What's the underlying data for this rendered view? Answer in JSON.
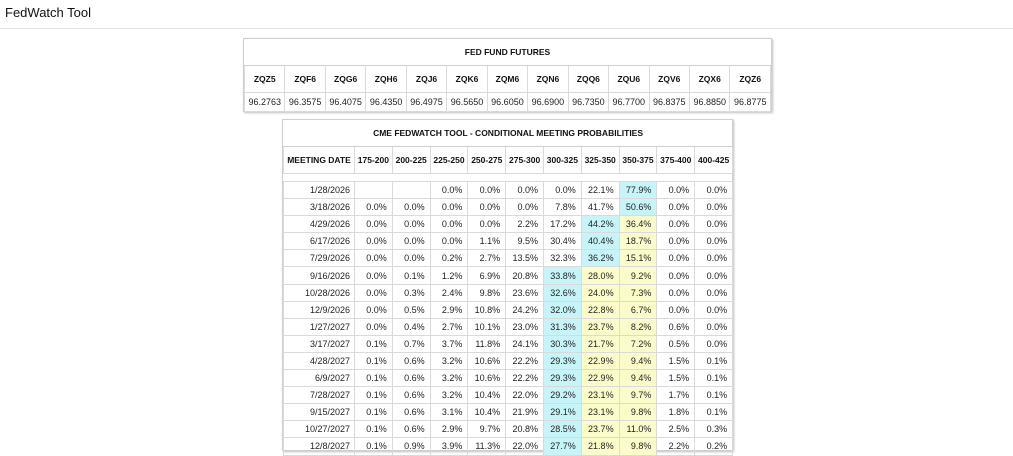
{
  "app": {
    "title": "FedWatch Tool"
  },
  "fed_fund_futures": {
    "title": "FED FUND FUTURES",
    "contracts": [
      "ZQZ5",
      "ZQF6",
      "ZQG6",
      "ZQH6",
      "ZQJ6",
      "ZQK6",
      "ZQM6",
      "ZQN6",
      "ZQQ6",
      "ZQU6",
      "ZQV6",
      "ZQX6",
      "ZQZ6"
    ],
    "prices": [
      "96.2763",
      "96.3575",
      "96.4075",
      "96.4350",
      "96.4975",
      "96.5650",
      "96.6050",
      "96.6900",
      "96.7350",
      "96.7700",
      "96.8375",
      "96.8850",
      "96.8775"
    ]
  },
  "probabilities": {
    "title": "CME FEDWATCH TOOL - CONDITIONAL MEETING PROBABILITIES",
    "date_header": "MEETING DATE",
    "ranges": [
      "175-200",
      "200-225",
      "225-250",
      "250-275",
      "275-300",
      "300-325",
      "325-350",
      "350-375",
      "375-400",
      "400-425"
    ],
    "rows": [
      {
        "date": "1/28/2026",
        "values": [
          "",
          "",
          "0.0%",
          "0.0%",
          "0.0%",
          "0.0%",
          "22.1%",
          "77.9%",
          "0.0%",
          "0.0%"
        ],
        "hl": {
          "7": "blue"
        }
      },
      {
        "date": "3/18/2026",
        "values": [
          "0.0%",
          "0.0%",
          "0.0%",
          "0.0%",
          "0.0%",
          "7.8%",
          "41.7%",
          "50.6%",
          "0.0%",
          "0.0%"
        ],
        "hl": {
          "7": "blue"
        }
      },
      {
        "date": "4/29/2026",
        "values": [
          "0.0%",
          "0.0%",
          "0.0%",
          "0.0%",
          "2.2%",
          "17.2%",
          "44.2%",
          "36.4%",
          "0.0%",
          "0.0%"
        ],
        "hl": {
          "6": "blue",
          "7": "yellow"
        }
      },
      {
        "date": "6/17/2026",
        "values": [
          "0.0%",
          "0.0%",
          "0.0%",
          "1.1%",
          "9.5%",
          "30.4%",
          "40.4%",
          "18.7%",
          "0.0%",
          "0.0%"
        ],
        "hl": {
          "6": "blue",
          "7": "yellow"
        }
      },
      {
        "date": "7/29/2026",
        "values": [
          "0.0%",
          "0.0%",
          "0.2%",
          "2.7%",
          "13.5%",
          "32.3%",
          "36.2%",
          "15.1%",
          "0.0%",
          "0.0%"
        ],
        "hl": {
          "6": "blue",
          "7": "yellow"
        }
      },
      {
        "date": "9/16/2026",
        "values": [
          "0.0%",
          "0.1%",
          "1.2%",
          "6.9%",
          "20.8%",
          "33.8%",
          "28.0%",
          "9.2%",
          "0.0%",
          "0.0%"
        ],
        "hl": {
          "5": "blue",
          "6": "yellow",
          "7": "yellow"
        }
      },
      {
        "date": "10/28/2026",
        "values": [
          "0.0%",
          "0.3%",
          "2.4%",
          "9.8%",
          "23.6%",
          "32.6%",
          "24.0%",
          "7.3%",
          "0.0%",
          "0.0%"
        ],
        "hl": {
          "5": "blue",
          "6": "yellow",
          "7": "yellow"
        }
      },
      {
        "date": "12/9/2026",
        "values": [
          "0.0%",
          "0.5%",
          "2.9%",
          "10.8%",
          "24.2%",
          "32.0%",
          "22.8%",
          "6.7%",
          "0.0%",
          "0.0%"
        ],
        "hl": {
          "5": "blue",
          "6": "yellow",
          "7": "yellow"
        }
      },
      {
        "date": "1/27/2027",
        "values": [
          "0.0%",
          "0.4%",
          "2.7%",
          "10.1%",
          "23.0%",
          "31.3%",
          "23.7%",
          "8.2%",
          "0.6%",
          "0.0%"
        ],
        "hl": {
          "5": "blue",
          "6": "yellow",
          "7": "yellow"
        }
      },
      {
        "date": "3/17/2027",
        "values": [
          "0.1%",
          "0.7%",
          "3.7%",
          "11.8%",
          "24.1%",
          "30.3%",
          "21.7%",
          "7.2%",
          "0.5%",
          "0.0%"
        ],
        "hl": {
          "5": "blue",
          "6": "yellow",
          "7": "yellow"
        }
      },
      {
        "date": "4/28/2027",
        "values": [
          "0.1%",
          "0.6%",
          "3.2%",
          "10.6%",
          "22.2%",
          "29.3%",
          "22.9%",
          "9.4%",
          "1.5%",
          "0.1%"
        ],
        "hl": {
          "5": "blue",
          "6": "yellow",
          "7": "yellow"
        }
      },
      {
        "date": "6/9/2027",
        "values": [
          "0.1%",
          "0.6%",
          "3.2%",
          "10.6%",
          "22.2%",
          "29.3%",
          "22.9%",
          "9.4%",
          "1.5%",
          "0.1%"
        ],
        "hl": {
          "5": "blue",
          "6": "yellow",
          "7": "yellow"
        }
      },
      {
        "date": "7/28/2027",
        "values": [
          "0.1%",
          "0.6%",
          "3.2%",
          "10.4%",
          "22.0%",
          "29.2%",
          "23.1%",
          "9.7%",
          "1.7%",
          "0.1%"
        ],
        "hl": {
          "5": "blue",
          "6": "yellow",
          "7": "yellow"
        }
      },
      {
        "date": "9/15/2027",
        "values": [
          "0.1%",
          "0.6%",
          "3.1%",
          "10.4%",
          "21.9%",
          "29.1%",
          "23.1%",
          "9.8%",
          "1.8%",
          "0.1%"
        ],
        "hl": {
          "5": "blue",
          "6": "yellow",
          "7": "yellow"
        }
      },
      {
        "date": "10/27/2027",
        "values": [
          "0.1%",
          "0.6%",
          "2.9%",
          "9.7%",
          "20.8%",
          "28.5%",
          "23.7%",
          "11.0%",
          "2.5%",
          "0.3%"
        ],
        "hl": {
          "5": "blue",
          "6": "yellow",
          "7": "yellow"
        }
      },
      {
        "date": "12/8/2027",
        "values": [
          "0.1%",
          "0.9%",
          "3.9%",
          "11.3%",
          "22.0%",
          "27.7%",
          "21.8%",
          "9.8%",
          "2.2%",
          "0.2%"
        ],
        "hl": {
          "5": "blue",
          "6": "yellow",
          "7": "yellow"
        }
      }
    ]
  },
  "colors": {
    "highlight_blue": "#c7f4f8",
    "highlight_yellow": "#fcfccb"
  }
}
